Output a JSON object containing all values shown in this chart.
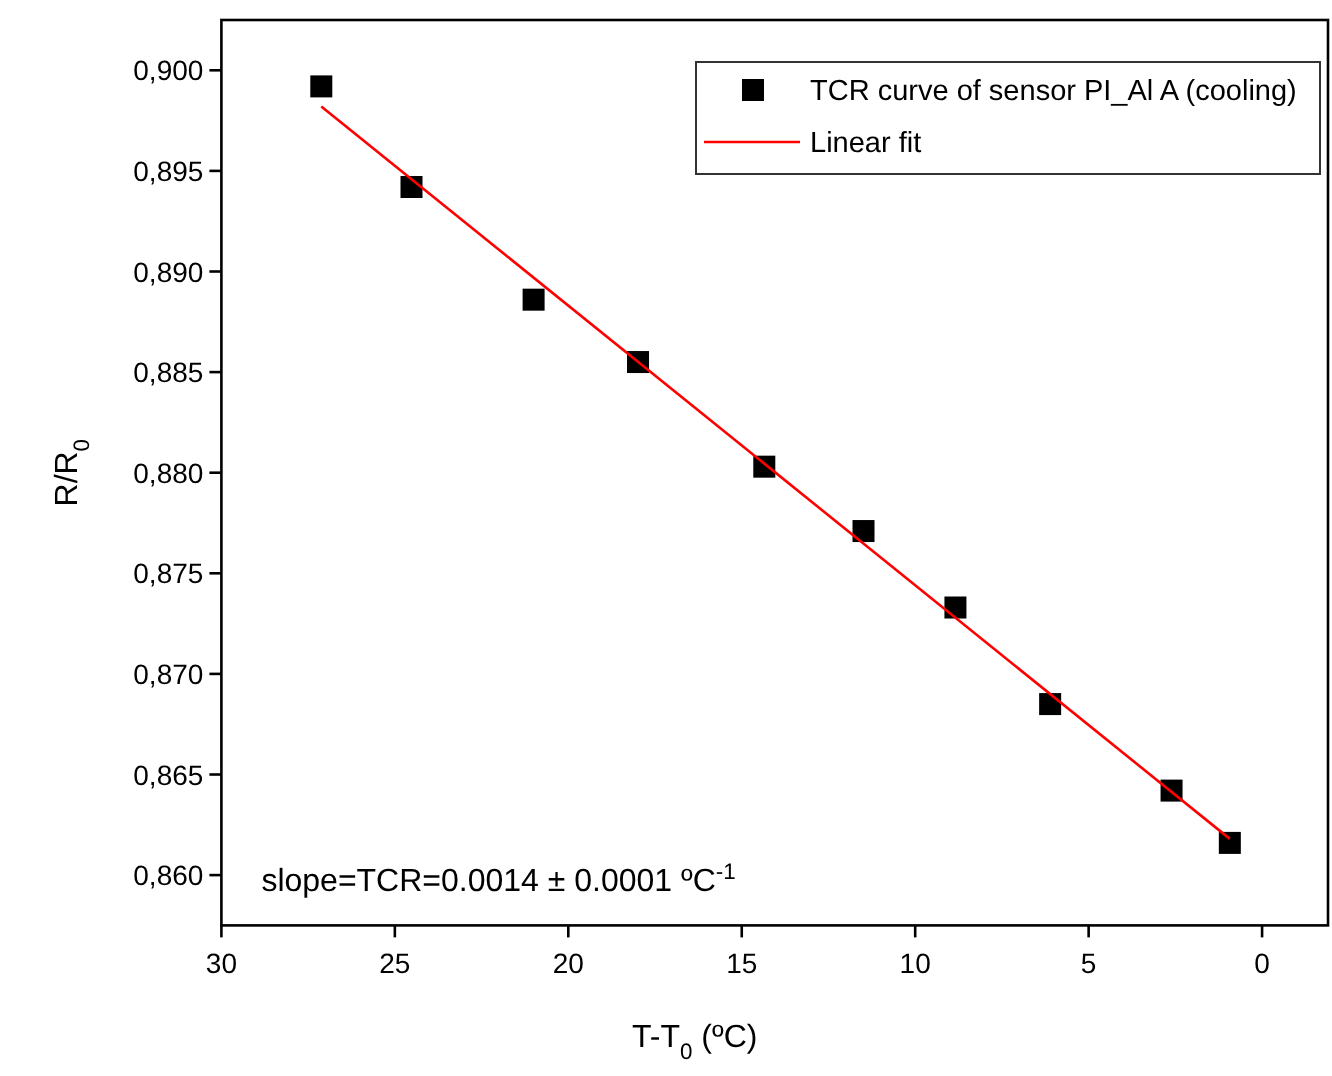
{
  "chart_data": {
    "type": "scatter",
    "xlabel": "T-T$_{0}$ (ºC)",
    "ylabel": "R/R$_{0}$",
    "annotations": [
      "slope=TCR=0.0014 ± 0.0001 ºC$^{-1}$"
    ],
    "series": [
      {
        "name": "TCR curve of sensor PI_Al A (cooling)",
        "color": "#000000",
        "marker": "square",
        "x": [
          27.12,
          24.52,
          21.0,
          17.99,
          14.35,
          11.49,
          8.84,
          6.11,
          2.61,
          0.93
        ],
        "values": [
          0.8992,
          0.8942,
          0.8886,
          0.8855,
          0.8803,
          0.8771,
          0.8733,
          0.8685,
          0.8642,
          0.8616
        ]
      },
      {
        "name": "Linear fit",
        "type": "line",
        "color": "#ff0000",
        "marker": "none",
        "line_style": "solid",
        "x": [
          27.12,
          0.93
        ],
        "values": [
          0.8982,
          0.8618
        ]
      }
    ],
    "xlim": [
      30,
      -1.9
    ],
    "xticks": [
      30,
      25,
      20,
      15,
      10,
      5,
      0
    ],
    "ylim": [
      0.8575,
      0.9025
    ],
    "yticks": [
      {
        "value": 0.86,
        "label": "0,860"
      },
      {
        "value": 0.865,
        "label": "0,865"
      },
      {
        "value": 0.87,
        "label": "0,870"
      },
      {
        "value": 0.875,
        "label": "0,875"
      },
      {
        "value": 0.88,
        "label": "0,880"
      },
      {
        "value": 0.885,
        "label": "0,885"
      },
      {
        "value": 0.89,
        "label": "0,890"
      },
      {
        "value": 0.895,
        "label": "0,895"
      },
      {
        "value": 0.9,
        "label": "0,900"
      }
    ],
    "grid": false,
    "legend": "top right"
  }
}
